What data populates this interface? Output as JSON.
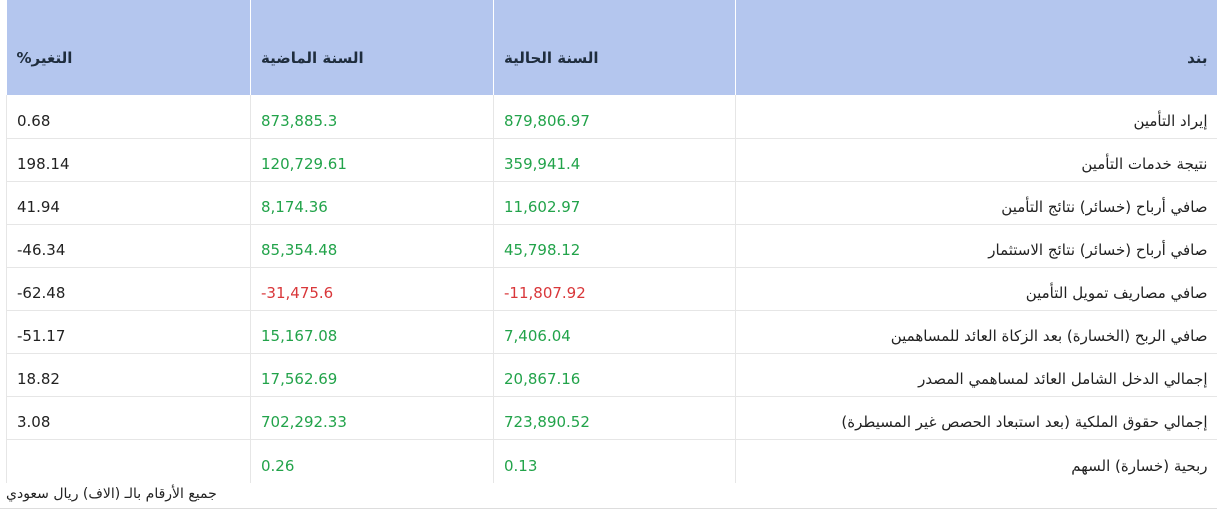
{
  "headers": {
    "item": "بند",
    "current": "السنة الحالية",
    "previous": "السنة الماضية",
    "change": "التغير%"
  },
  "rows": [
    {
      "item": "إيراد التأمين",
      "current": "879,806.97",
      "previous": "873,885.3",
      "change": "0.68",
      "current_sign": "pos",
      "previous_sign": "pos"
    },
    {
      "item": "نتيجة خدمات التأمين",
      "current": "359,941.4",
      "previous": "120,729.61",
      "change": "198.14",
      "current_sign": "pos",
      "previous_sign": "pos"
    },
    {
      "item": "صافي أرباح (خسائر) نتائج التأمين",
      "current": "11,602.97",
      "previous": "8,174.36",
      "change": "41.94",
      "current_sign": "pos",
      "previous_sign": "pos"
    },
    {
      "item": "صافي أرباح (خسائر) نتائج الاستثمار",
      "current": "45,798.12",
      "previous": "85,354.48",
      "change": "46.34-",
      "current_sign": "pos",
      "previous_sign": "pos"
    },
    {
      "item": "صافي مصاريف تمويل التأمين",
      "current": "11,807.92-",
      "previous": "31,475.6-",
      "change": "62.48-",
      "current_sign": "neg",
      "previous_sign": "neg"
    },
    {
      "item": "صافي الربح (الخسارة) بعد الزكاة العائد للمساهمين",
      "current": "7,406.04",
      "previous": "15,167.08",
      "change": "51.17-",
      "current_sign": "pos",
      "previous_sign": "pos"
    },
    {
      "item": "إجمالي الدخل الشامل العائد لمساهمي المصدر",
      "current": "20,867.16",
      "previous": "17,562.69",
      "change": "18.82",
      "current_sign": "pos",
      "previous_sign": "pos"
    },
    {
      "item": "إجمالي حقوق الملكية (بعد استبعاد الحصص غير المسيطرة)",
      "current": "723,890.52",
      "previous": "702,292.33",
      "change": "3.08",
      "current_sign": "pos",
      "previous_sign": "pos"
    },
    {
      "item": "ربحية (خسارة) السهم",
      "current": "0.13",
      "previous": "0.26",
      "change": "",
      "current_sign": "pos",
      "previous_sign": "pos"
    }
  ],
  "footnote": "جميع الأرقام بالـ (الاف) ريال سعودي",
  "colors": {
    "header_bg": "#b4c6ee",
    "positive": "#22a34a",
    "negative": "#d9373a"
  }
}
